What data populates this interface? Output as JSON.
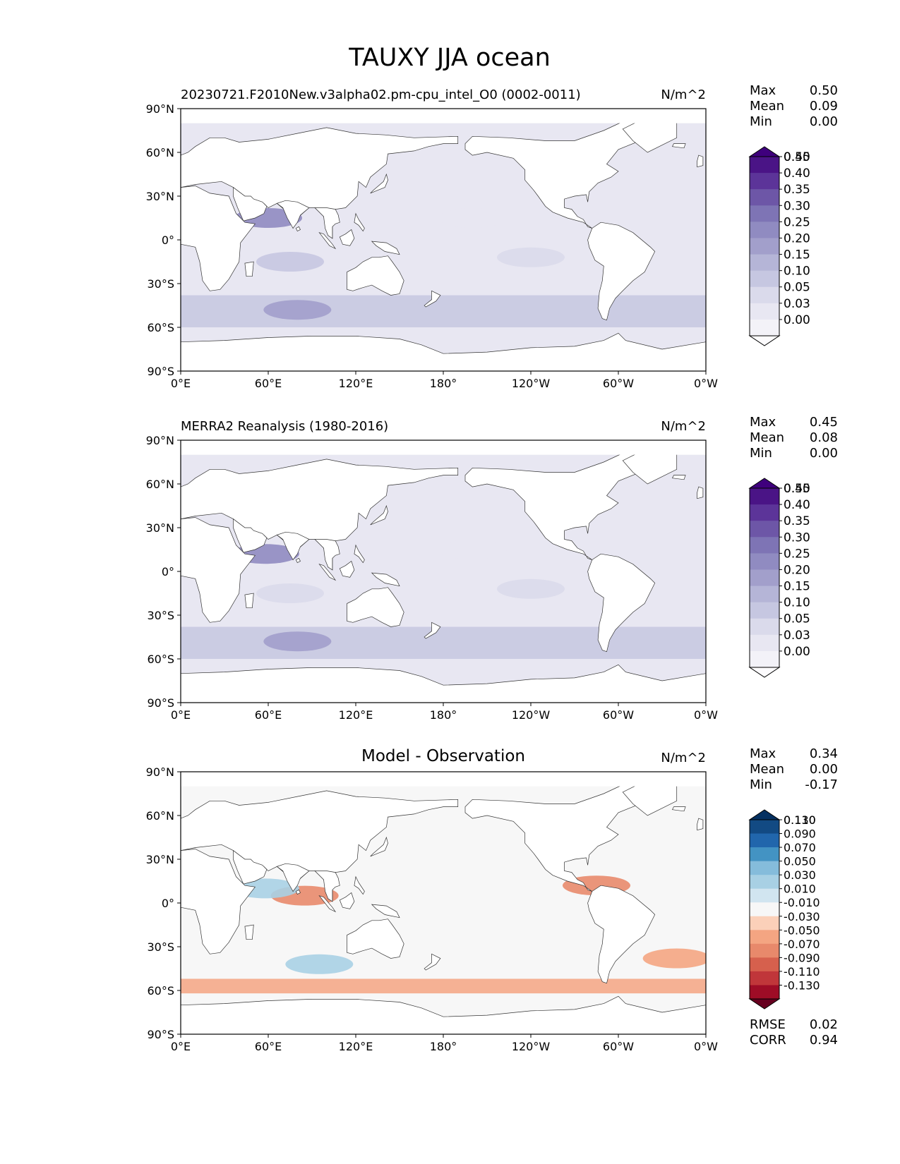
{
  "figure": {
    "title": "TAUXY JJA ocean"
  },
  "chart_data": [
    {
      "type": "heatmap",
      "title": "20230721.F2010New.v3alpha02.pm-cpu_intel_O0 (0002-0011)",
      "units": "N/m^2",
      "x_ticks": [
        "0°E",
        "60°E",
        "120°E",
        "180°",
        "120°W",
        "60°W",
        "0°W"
      ],
      "y_ticks": [
        "90°N",
        "60°N",
        "30°N",
        "0°",
        "30°S",
        "60°S",
        "90°S"
      ],
      "xlim": [
        0,
        360
      ],
      "ylim": [
        -90,
        90
      ],
      "stats": [
        {
          "label": "Max",
          "value": "0.50"
        },
        {
          "label": "Mean",
          "value": "0.09"
        },
        {
          "label": "Min",
          "value": "0.00"
        }
      ],
      "colorbar": {
        "levels": [
          "0.00",
          "0.03",
          "0.05",
          "0.10",
          "0.15",
          "0.20",
          "0.25",
          "0.30",
          "0.35",
          "0.40",
          "0.45",
          "0.50"
        ],
        "colors": [
          "#fcfbfd",
          "#f3f2f8",
          "#e8e7f2",
          "#dadaeb",
          "#c6c7e1",
          "#b5b5d7",
          "#a29fcb",
          "#908bc1",
          "#7e74b5",
          "#6d56a7",
          "#5c3499",
          "#4a1486",
          "#3f007d"
        ]
      },
      "features": [
        {
          "name": "southern-ocean-band",
          "lat_range": [
            -60,
            -38
          ],
          "level": 4
        },
        {
          "name": "arabian-sea-jet",
          "lon": 60,
          "lat": 15,
          "level": 7
        },
        {
          "name": "indian-ocean-southeast-trades",
          "lon": 75,
          "lat": -15,
          "level": 4
        },
        {
          "name": "south-pacific-trades",
          "lon": 240,
          "lat": -12,
          "level": 3
        },
        {
          "name": "north-pacific-trades",
          "lon": 200,
          "lat": 15,
          "level": 2
        },
        {
          "name": "south-indian-westerlies-max",
          "lon": 80,
          "lat": -48,
          "level": 6
        }
      ]
    },
    {
      "type": "heatmap",
      "title": "MERRA2 Reanalysis (1980-2016)",
      "units": "N/m^2",
      "x_ticks": [
        "0°E",
        "60°E",
        "120°E",
        "180°",
        "120°W",
        "60°W",
        "0°W"
      ],
      "y_ticks": [
        "90°N",
        "60°N",
        "30°N",
        "0°",
        "30°S",
        "60°S",
        "90°S"
      ],
      "xlim": [
        0,
        360
      ],
      "ylim": [
        -90,
        90
      ],
      "stats": [
        {
          "label": "Max",
          "value": "0.45"
        },
        {
          "label": "Mean",
          "value": "0.08"
        },
        {
          "label": "Min",
          "value": "0.00"
        }
      ],
      "colorbar": {
        "levels": [
          "0.00",
          "0.03",
          "0.05",
          "0.10",
          "0.15",
          "0.20",
          "0.25",
          "0.30",
          "0.35",
          "0.40",
          "0.45",
          "0.50"
        ],
        "colors": [
          "#fcfbfd",
          "#f3f2f8",
          "#e8e7f2",
          "#dadaeb",
          "#c6c7e1",
          "#b5b5d7",
          "#a29fcb",
          "#908bc1",
          "#7e74b5",
          "#6d56a7",
          "#5c3499",
          "#4a1486",
          "#3f007d"
        ]
      },
      "features": [
        {
          "name": "southern-ocean-band",
          "lat_range": [
            -60,
            -38
          ],
          "level": 4
        },
        {
          "name": "arabian-sea-jet",
          "lon": 58,
          "lat": 12,
          "level": 7
        },
        {
          "name": "indian-ocean-southeast-trades",
          "lon": 75,
          "lat": -15,
          "level": 3
        },
        {
          "name": "south-pacific-trades",
          "lon": 240,
          "lat": -12,
          "level": 3
        },
        {
          "name": "north-pacific-trades",
          "lon": 200,
          "lat": 15,
          "level": 2
        },
        {
          "name": "south-indian-westerlies-max",
          "lon": 80,
          "lat": -48,
          "level": 6
        }
      ]
    },
    {
      "type": "heatmap",
      "title": "Model - Observation",
      "units": "N/m^2",
      "x_ticks": [
        "0°E",
        "60°E",
        "120°E",
        "180°",
        "120°W",
        "60°W",
        "0°W"
      ],
      "y_ticks": [
        "90°N",
        "60°N",
        "30°N",
        "0°",
        "30°S",
        "60°S",
        "90°S"
      ],
      "xlim": [
        0,
        360
      ],
      "ylim": [
        -90,
        90
      ],
      "stats": [
        {
          "label": "Max",
          "value": "0.34"
        },
        {
          "label": "Mean",
          "value": "0.00"
        },
        {
          "label": "Min",
          "value": "-0.17"
        }
      ],
      "extra_stats": [
        {
          "label": "RMSE",
          "value": "0.02"
        },
        {
          "label": "CORR",
          "value": "0.94"
        }
      ],
      "colorbar": {
        "levels": [
          "-0.130",
          "-0.110",
          "-0.090",
          "-0.070",
          "-0.050",
          "-0.030",
          "-0.010",
          "0.010",
          "0.030",
          "0.050",
          "0.070",
          "0.090",
          "0.110",
          "0.130"
        ],
        "colors": [
          "#67001f",
          "#9e0c26",
          "#c0363a",
          "#d6604d",
          "#e8896b",
          "#f4a582",
          "#fbd0b9",
          "#f7f7f7",
          "#d1e5f0",
          "#a8d0e4",
          "#85bcdb",
          "#4393c3",
          "#2166ac",
          "#124a83",
          "#053061"
        ]
      },
      "features": [
        {
          "name": "southern-ocean-negative",
          "lat_range": [
            -62,
            -52
          ],
          "value": -0.04
        },
        {
          "name": "south-indian-positive",
          "lon": 95,
          "lat": -42,
          "value": 0.04
        },
        {
          "name": "bay-of-bengal-negative",
          "lon": 85,
          "lat": 5,
          "value": -0.05
        },
        {
          "name": "arabian-sea-positive",
          "lon": 58,
          "lat": 10,
          "value": 0.05
        },
        {
          "name": "caribbean-negative",
          "lon": 285,
          "lat": 12,
          "value": -0.05
        },
        {
          "name": "south-atlantic-negative",
          "lon": 340,
          "lat": -38,
          "value": -0.04
        }
      ]
    }
  ]
}
